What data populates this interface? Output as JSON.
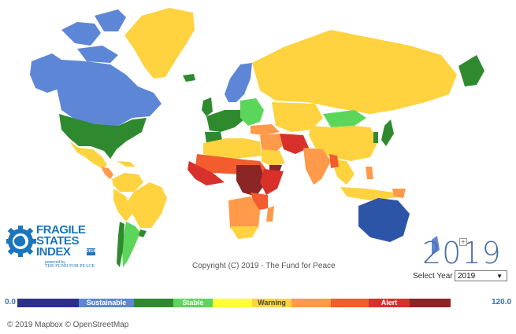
{
  "map": {
    "copyright": "Copyright (C) 2019 - The Fund for Peace",
    "attribution": "© 2019 Mapbox  © OpenStreetMap",
    "colors": {
      "sustainable_dark": "#2e2f8a",
      "sustainable_light": "#5e86d6",
      "stable_dark": "#2f8a2f",
      "stable_light": "#5bd65b",
      "warning_yellow": "#ffff33",
      "warning_gold": "#ffd23f",
      "warning_orange": "#ff9a4a",
      "alert_red": "#f25c2e",
      "alert_dark": "#d8302a",
      "alert_darkest": "#8c2525",
      "ocean": "#ffffff"
    }
  },
  "logo": {
    "line1": "FRAGILE",
    "line2": "STATES",
    "line3": "INDEX",
    "powered_by": "powered by",
    "publisher": "THE FUND FOR PEACE",
    "badge": "2019"
  },
  "year_selector": {
    "big_year": "2019",
    "label": "Select Year",
    "selected": "2019"
  },
  "legend": {
    "min": "0.0",
    "max": "120.0",
    "segments": [
      {
        "color": "#2e2f8a",
        "width": 78,
        "label": "",
        "text_color": "#ffffff"
      },
      {
        "color": "#5e86d6",
        "width": 70,
        "label": "Sustainable",
        "text_color": "#ffffff"
      },
      {
        "color": "#2f8a2f",
        "width": 50,
        "label": "",
        "text_color": "#ffffff"
      },
      {
        "color": "#5bd65b",
        "width": 50,
        "label": "Stable",
        "text_color": "#ffffff"
      },
      {
        "color": "#ffff33",
        "width": 50,
        "label": "",
        "text_color": "#444444"
      },
      {
        "color": "#ffd23f",
        "width": 50,
        "label": "Warning",
        "text_color": "#444444"
      },
      {
        "color": "#ff9a4a",
        "width": 50,
        "label": "",
        "text_color": "#ffffff"
      },
      {
        "color": "#f25c2e",
        "width": 48,
        "label": "",
        "text_color": "#ffffff"
      },
      {
        "color": "#d8302a",
        "width": 52,
        "label": "Alert",
        "text_color": "#ffffff"
      },
      {
        "color": "#8c2525",
        "width": 52,
        "label": "",
        "text_color": "#ffffff"
      }
    ]
  }
}
